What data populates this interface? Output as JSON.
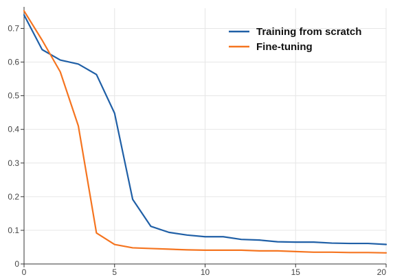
{
  "chart_data": {
    "type": "line",
    "title": "",
    "xlabel": "",
    "ylabel": "",
    "xlim": [
      0,
      20
    ],
    "ylim": [
      0,
      0.76
    ],
    "xticks": [
      0,
      5,
      10,
      15,
      20
    ],
    "xtick_labels": [
      "0",
      "5",
      "10",
      "15",
      "20"
    ],
    "yticks": [
      0,
      0.1,
      0.2,
      0.3,
      0.4,
      0.5,
      0.6,
      0.7
    ],
    "ytick_labels": [
      "0",
      "0.1",
      "0.2",
      "0.3",
      "0.4",
      "0.5",
      "0.6",
      "0.7"
    ],
    "grid": true,
    "legend_position": "top-right",
    "series": [
      {
        "name": "Training from scratch",
        "color": "#1f5fa6",
        "x": [
          0,
          1,
          2,
          3,
          4,
          5,
          6,
          7,
          8,
          9,
          10,
          11,
          12,
          13,
          14,
          15,
          16,
          17,
          18,
          19,
          20
        ],
        "y": [
          0.74,
          0.637,
          0.606,
          0.594,
          0.563,
          0.448,
          0.192,
          0.112,
          0.094,
          0.086,
          0.081,
          0.081,
          0.073,
          0.071,
          0.066,
          0.065,
          0.065,
          0.062,
          0.061,
          0.061,
          0.058
        ]
      },
      {
        "name": "Fine-tuning",
        "color": "#f5741f",
        "x": [
          0,
          1,
          2,
          3,
          4,
          5,
          6,
          7,
          8,
          9,
          10,
          11,
          12,
          13,
          14,
          15,
          16,
          17,
          18,
          19,
          20
        ],
        "y": [
          0.752,
          0.665,
          0.571,
          0.41,
          0.092,
          0.058,
          0.048,
          0.046,
          0.044,
          0.042,
          0.041,
          0.041,
          0.041,
          0.039,
          0.039,
          0.037,
          0.035,
          0.035,
          0.034,
          0.034,
          0.033
        ]
      }
    ]
  }
}
